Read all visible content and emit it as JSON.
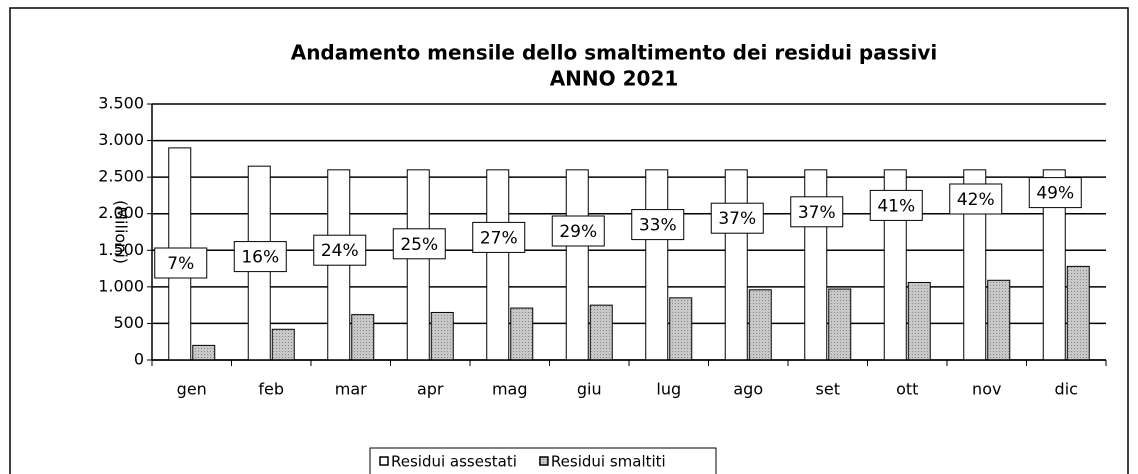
{
  "chart_data": {
    "type": "bar",
    "title": "Andamento mensile dello smaltimento dei residui passivi",
    "subtitle": "ANNO 2021",
    "y_label": "(Milioni)",
    "categories": [
      "gen",
      "feb",
      "mar",
      "apr",
      "mag",
      "giu",
      "lug",
      "ago",
      "set",
      "ott",
      "nov",
      "dic"
    ],
    "series": [
      {
        "name": "Residui assestati",
        "color": "#ffffff",
        "values": [
          2900,
          2650,
          2600,
          2600,
          2600,
          2600,
          2600,
          2600,
          2600,
          2600,
          2600,
          2600
        ]
      },
      {
        "name": "Residui smaltiti",
        "color": "#bfbfbf",
        "values": [
          200,
          420,
          620,
          650,
          710,
          750,
          850,
          960,
          970,
          1060,
          1090,
          1280
        ]
      }
    ],
    "annotations": [
      "7%",
      "16%",
      "24%",
      "25%",
      "27%",
      "29%",
      "33%",
      "37%",
      "37%",
      "41%",
      "42%",
      "49%"
    ],
    "ylim": [
      0,
      3500
    ],
    "yticks": [
      0,
      500,
      {
        "value": 1000,
        "label": "1.000"
      },
      {
        "value": 1500,
        "label": "1.500"
      },
      {
        "value": 2000,
        "label": "2.000"
      },
      {
        "value": 2500,
        "label": "2.500"
      },
      {
        "value": 3000,
        "label": "3.000"
      },
      {
        "value": 3500,
        "label": "3.500"
      }
    ],
    "grid": true
  }
}
